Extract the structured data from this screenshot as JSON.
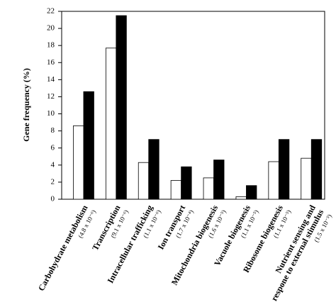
{
  "chart_data": {
    "type": "bar",
    "ylabel": "Gene frequency (%)",
    "categories": [
      "Carbohydrate metabolism",
      "Transcription",
      "Intracellular trafficking",
      "Ion transport",
      "Mitochondria biogenesis",
      "Vacuole biogenesis",
      "Ribosome biogenesis",
      "Nutrient sensing and respone to external stimulus"
    ],
    "p_values": [
      "(4.8 x 10⁻⁶)",
      "(9.1 x 10⁻⁶)",
      "(1.1 x 10⁻⁶)",
      "(1.7 x 10⁻⁴)",
      "(1.6 x 10⁻⁵)",
      "(1.1 x 10⁻⁵)",
      "(1.1 x 10⁻⁵)",
      "(1.5 x 10⁻⁵)"
    ],
    "series": [
      {
        "color": "#ffffff",
        "values": [
          8.6,
          17.7,
          4.3,
          2.2,
          2.5,
          0.3,
          4.4,
          4.8
        ]
      },
      {
        "color": "#000000",
        "values": [
          12.6,
          21.5,
          7.0,
          3.8,
          4.6,
          1.6,
          7.0,
          7.0
        ]
      }
    ],
    "ylim": [
      0,
      22
    ],
    "yticks": [
      0,
      2,
      4,
      6,
      8,
      10,
      12,
      14,
      16,
      18,
      20,
      22
    ]
  }
}
